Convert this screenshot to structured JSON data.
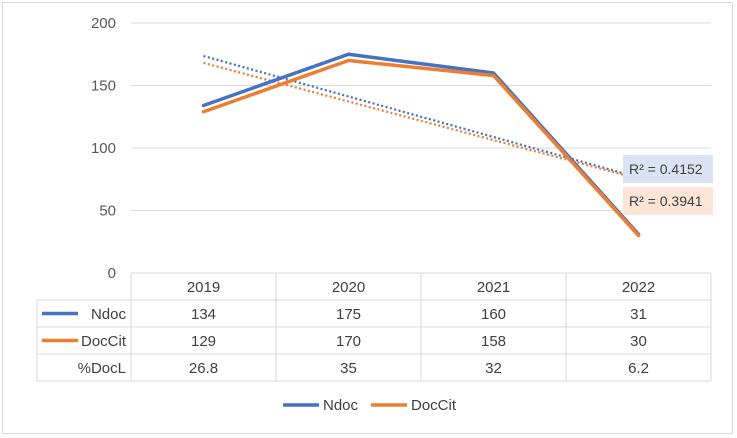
{
  "chart_data": {
    "type": "line",
    "categories": [
      "2019",
      "2020",
      "2021",
      "2022"
    ],
    "ylim": [
      0,
      200
    ],
    "yticks": [
      0,
      50,
      100,
      150,
      200
    ],
    "series": [
      {
        "name": "Ndoc",
        "values": [
          134,
          175,
          160,
          31
        ],
        "color": "#4472c4",
        "trendline": {
          "r2_label": "R² = 0.4152",
          "label_bg": "#dae3f3"
        }
      },
      {
        "name": "DocCit",
        "values": [
          129,
          170,
          158,
          30
        ],
        "color": "#ed7d31",
        "trendline": {
          "r2_label": "R² = 0.3941",
          "label_bg": "#fbe5d6"
        }
      }
    ],
    "table_rows": [
      {
        "label": "Ndoc",
        "values": [
          "134",
          "175",
          "160",
          "31"
        ],
        "legend_key": true,
        "color": "#4472c4"
      },
      {
        "label": "DocCit",
        "values": [
          "129",
          "170",
          "158",
          "30"
        ],
        "legend_key": true,
        "color": "#ed7d31"
      },
      {
        "label": "%DocL",
        "values": [
          "26.8",
          "35",
          "32",
          "6.2"
        ],
        "legend_key": false
      }
    ],
    "grid": true,
    "legend_position": "bottom"
  }
}
